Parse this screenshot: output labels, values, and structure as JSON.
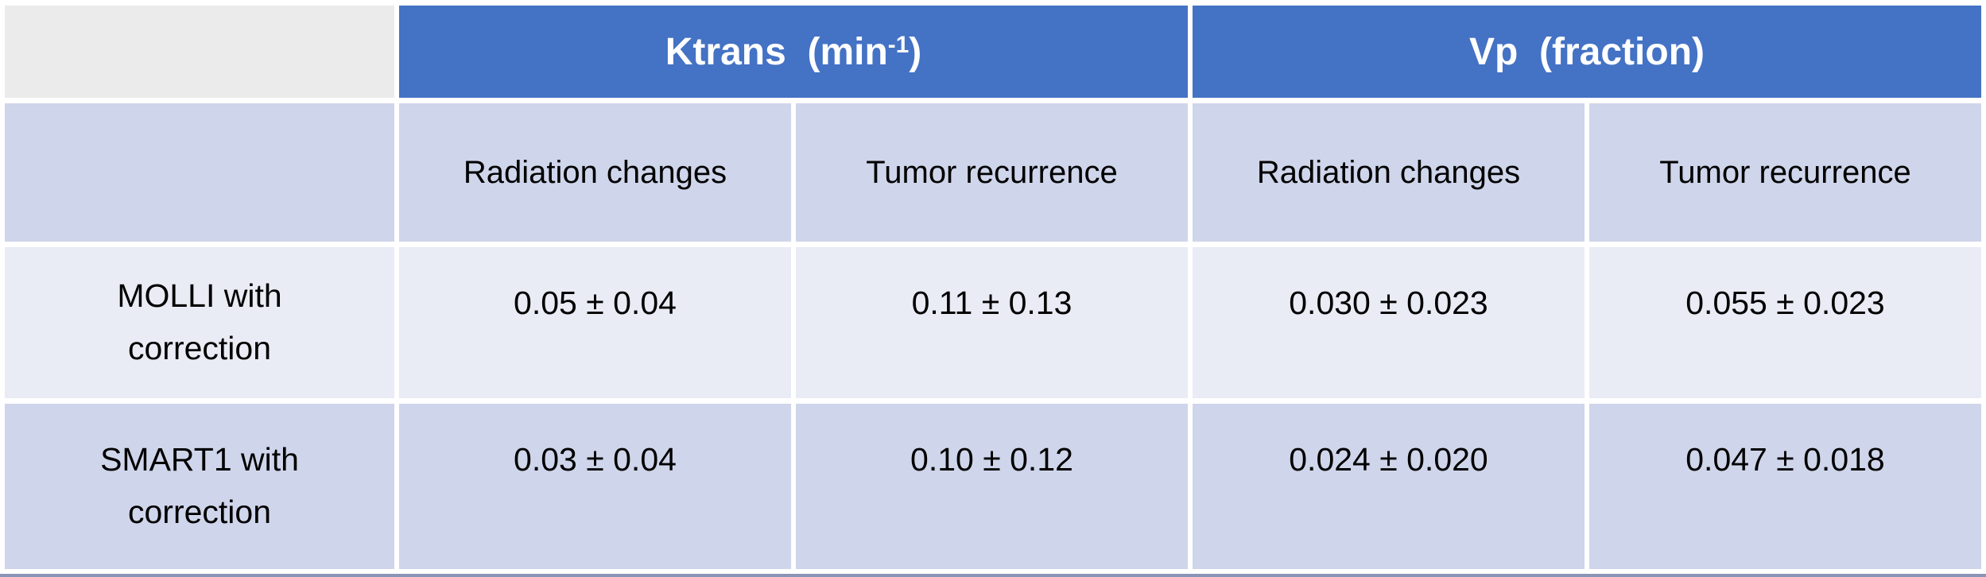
{
  "colors": {
    "header_blue": "#4472C4",
    "header_text": "#FFFFFF",
    "corner_gray": "#EBEBEB",
    "band_dark_lavender": "#CFD5EA",
    "band_light_lavender": "#E9EBF5",
    "cell_gap_white": "#FFFFFF",
    "bottom_bar": "#8B94B6",
    "body_text": "#000000"
  },
  "header_display": {
    "ktrans_main": "Ktrans  (min",
    "ktrans_sup": "-1",
    "ktrans_close": ")",
    "vp": "Vp  (fraction)"
  },
  "chart_data": {
    "type": "table",
    "title": "",
    "column_groups": [
      {
        "label": "Ktrans (min⁻¹)",
        "columns": [
          "Radiation changes",
          "Tumor recurrence"
        ]
      },
      {
        "label": "Vp (fraction)",
        "columns": [
          "Radiation changes",
          "Tumor recurrence"
        ]
      }
    ],
    "row_labels": [
      "MOLLI with correction",
      "SMART1 with correction"
    ],
    "cells": [
      [
        "0.05 ± 0.04",
        "0.11 ± 0.13",
        "0.030 ± 0.023",
        "0.055 ± 0.023"
      ],
      [
        "0.03 ± 0.04",
        "0.10 ± 0.12",
        "0.024 ± 0.020",
        "0.047 ± 0.018"
      ]
    ]
  }
}
